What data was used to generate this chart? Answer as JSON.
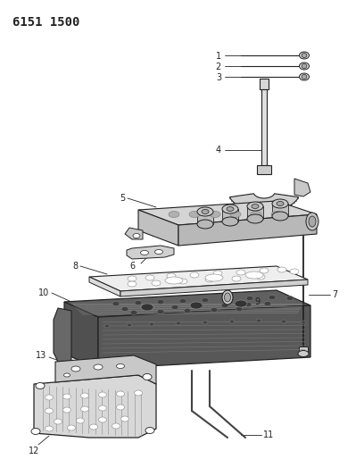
{
  "title": "6151 1500",
  "background_color": "#ffffff",
  "line_color": "#222222",
  "label_color": "#222222",
  "label_fontsize": 7.0,
  "figsize": [
    4.08,
    5.33
  ],
  "dpi": 100
}
